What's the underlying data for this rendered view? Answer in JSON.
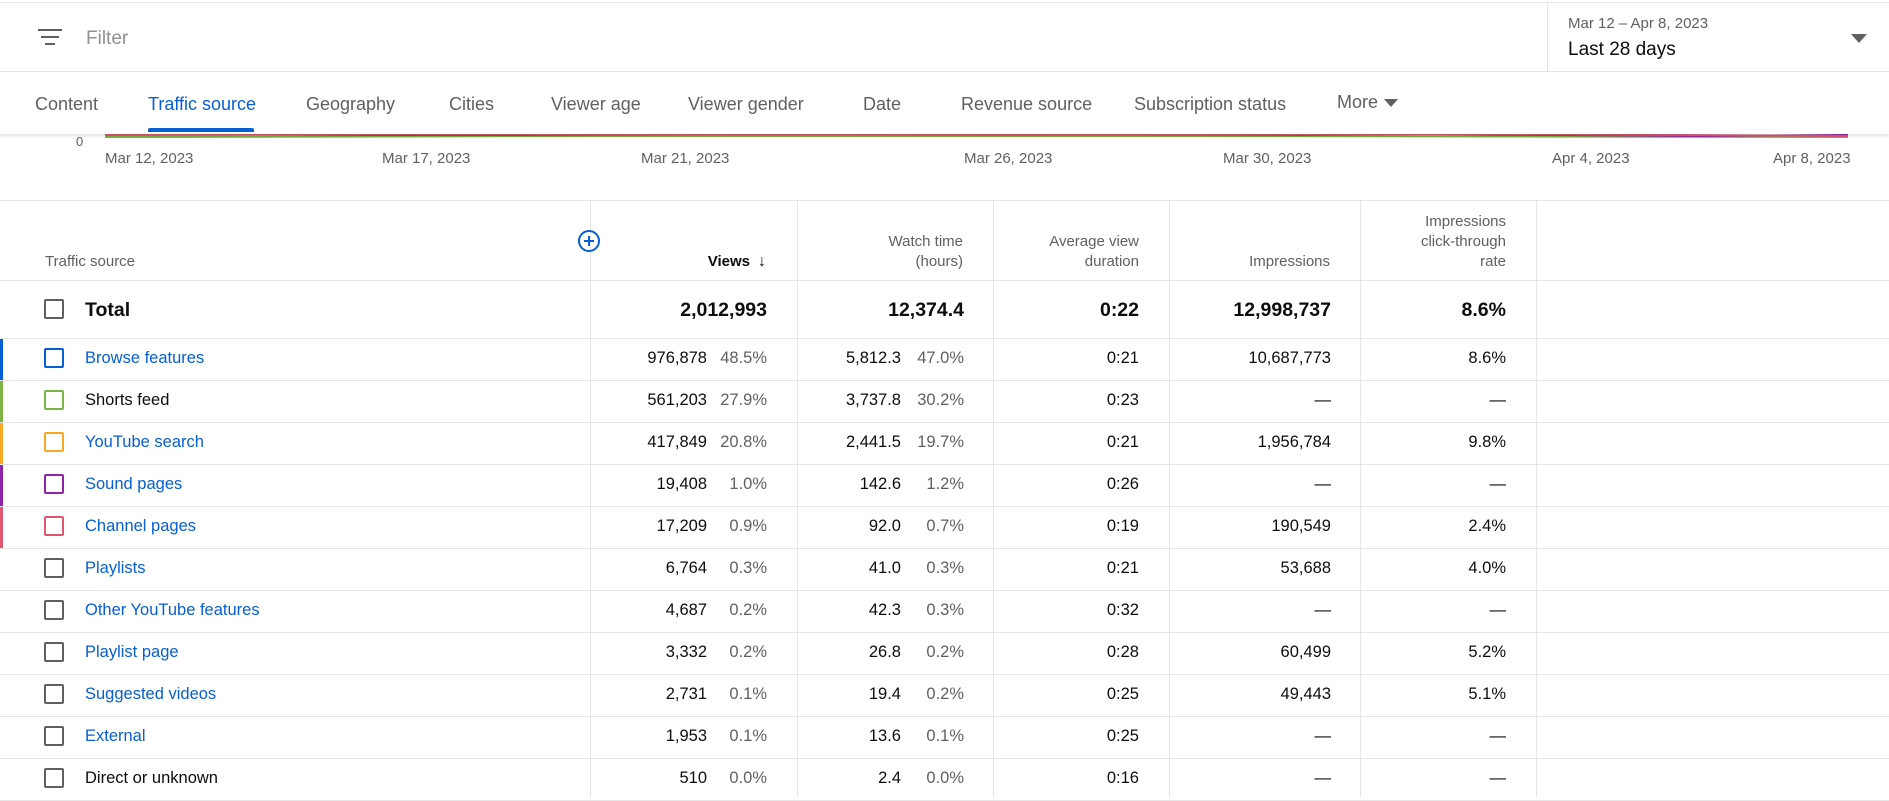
{
  "filter": {
    "placeholder": "Filter"
  },
  "date_picker": {
    "range": "Mar 12 – Apr 8, 2023",
    "label": "Last 28 days"
  },
  "tabs": [
    {
      "label": "Content"
    },
    {
      "label": "Traffic source",
      "active": true
    },
    {
      "label": "Geography"
    },
    {
      "label": "Cities"
    },
    {
      "label": "Viewer age"
    },
    {
      "label": "Viewer gender"
    },
    {
      "label": "Date"
    },
    {
      "label": "Revenue source"
    },
    {
      "label": "Subscription status"
    },
    {
      "label": "More"
    }
  ],
  "chart": {
    "y_zero": "0",
    "x_ticks": [
      "Mar 12, 2023",
      "Mar 17, 2023",
      "Mar 21, 2023",
      "Mar 26, 2023",
      "Mar 30, 2023",
      "Apr 4, 2023",
      "Apr 8, 2023"
    ]
  },
  "table": {
    "headers": {
      "traffic_source": "Traffic source",
      "views": "Views",
      "watch_time_1": "Watch time",
      "watch_time_2": "(hours)",
      "avg_1": "Average view",
      "avg_2": "duration",
      "impressions": "Impressions",
      "ctr_1": "Impressions",
      "ctr_2": "click-through",
      "ctr_3": "rate"
    },
    "total": {
      "label": "Total",
      "views": "2,012,993",
      "watch": "12,374.4",
      "avg": "0:22",
      "impressions": "12,998,737",
      "ctr": "8.6%"
    },
    "rows": [
      {
        "name": "Browse features",
        "link": true,
        "color": "#065fd4",
        "views": "976,878",
        "views_pct": "48.5%",
        "watch": "5,812.3",
        "watch_pct": "47.0%",
        "avg": "0:21",
        "impressions": "10,687,773",
        "ctr": "8.6%"
      },
      {
        "name": "Shorts feed",
        "link": false,
        "color": "#7cb342",
        "views": "561,203",
        "views_pct": "27.9%",
        "watch": "3,737.8",
        "watch_pct": "30.2%",
        "avg": "0:23",
        "impressions": "—",
        "ctr": "—"
      },
      {
        "name": "YouTube search",
        "link": true,
        "color": "#f9a825",
        "views": "417,849",
        "views_pct": "20.8%",
        "watch": "2,441.5",
        "watch_pct": "19.7%",
        "avg": "0:21",
        "impressions": "1,956,784",
        "ctr": "9.8%"
      },
      {
        "name": "Sound pages",
        "link": true,
        "color": "#8e24aa",
        "views": "19,408",
        "views_pct": "1.0%",
        "watch": "142.6",
        "watch_pct": "1.2%",
        "avg": "0:26",
        "impressions": "—",
        "ctr": "—"
      },
      {
        "name": "Channel pages",
        "link": true,
        "color": "#e05572",
        "views": "17,209",
        "views_pct": "0.9%",
        "watch": "92.0",
        "watch_pct": "0.7%",
        "avg": "0:19",
        "impressions": "190,549",
        "ctr": "2.4%"
      },
      {
        "name": "Playlists",
        "link": true,
        "color": "",
        "views": "6,764",
        "views_pct": "0.3%",
        "watch": "41.0",
        "watch_pct": "0.3%",
        "avg": "0:21",
        "impressions": "53,688",
        "ctr": "4.0%"
      },
      {
        "name": "Other YouTube features",
        "link": true,
        "color": "",
        "views": "4,687",
        "views_pct": "0.2%",
        "watch": "42.3",
        "watch_pct": "0.3%",
        "avg": "0:32",
        "impressions": "—",
        "ctr": "—"
      },
      {
        "name": "Playlist page",
        "link": true,
        "color": "",
        "views": "3,332",
        "views_pct": "0.2%",
        "watch": "26.8",
        "watch_pct": "0.2%",
        "avg": "0:28",
        "impressions": "60,499",
        "ctr": "5.2%"
      },
      {
        "name": "Suggested videos",
        "link": true,
        "color": "",
        "views": "2,731",
        "views_pct": "0.1%",
        "watch": "19.4",
        "watch_pct": "0.2%",
        "avg": "0:25",
        "impressions": "49,443",
        "ctr": "5.1%"
      },
      {
        "name": "External",
        "link": true,
        "color": "",
        "views": "1,953",
        "views_pct": "0.1%",
        "watch": "13.6",
        "watch_pct": "0.1%",
        "avg": "0:25",
        "impressions": "—",
        "ctr": "—"
      },
      {
        "name": "Direct or unknown",
        "link": false,
        "color": "",
        "views": "510",
        "views_pct": "0.0%",
        "watch": "2.4",
        "watch_pct": "0.0%",
        "avg": "0:16",
        "impressions": "—",
        "ctr": "—"
      }
    ]
  }
}
